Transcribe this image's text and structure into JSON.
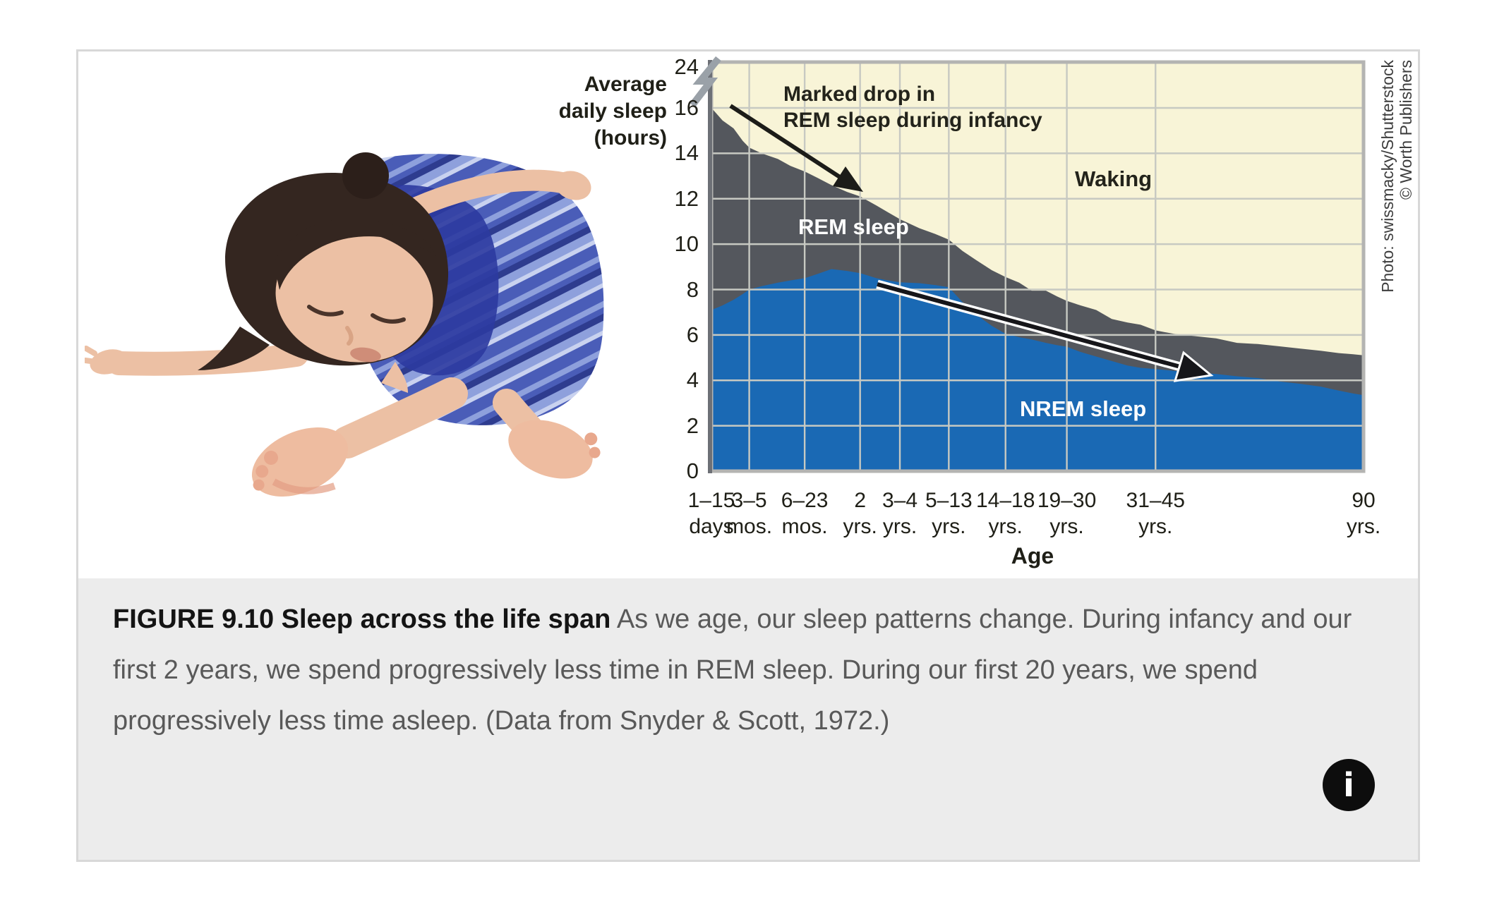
{
  "figure": {
    "credit_lines": [
      "Photo: swissmacky/Shutterstock",
      "© Worth Publishers"
    ]
  },
  "chart_data": {
    "type": "area",
    "stacked": true,
    "title": "",
    "xlabel": "Age",
    "legend_position": "in-plot-labels",
    "grid": true,
    "colors": {
      "waking": "#f8f4d7",
      "rem": "#54575d",
      "nrem": "#1a69b4",
      "grid": "#c7c9c2",
      "plot_border": "#b4b4b2",
      "axis_line": "#6d7076"
    },
    "series_labels": {
      "waking": "Waking",
      "rem": "REM sleep",
      "nrem": "NREM sleep"
    },
    "y_axis": {
      "title_lines": [
        "Average",
        "daily sleep",
        "(hours)"
      ],
      "ticks": [
        {
          "label": "0",
          "hours": 0
        },
        {
          "label": "2",
          "hours": 2
        },
        {
          "label": "4",
          "hours": 4
        },
        {
          "label": "6",
          "hours": 6
        },
        {
          "label": "8",
          "hours": 8
        },
        {
          "label": "10",
          "hours": 10
        },
        {
          "label": "12",
          "hours": 12
        },
        {
          "label": "14",
          "hours": 14
        },
        {
          "label": "16",
          "hours": 16
        },
        {
          "label": "24",
          "hours": 24
        }
      ],
      "gridline_hours": [
        2,
        4,
        6,
        8,
        10,
        12,
        14,
        16
      ],
      "axis_break_between": [
        16,
        24
      ],
      "range_shown": [
        0,
        24
      ]
    },
    "x_axis": {
      "title": "Age",
      "ticks": [
        {
          "line1": "1–15",
          "line2": "days",
          "frac": 0.0
        },
        {
          "line1": "3–5",
          "line2": "mos.",
          "frac": 0.058
        },
        {
          "line1": "6–23",
          "line2": "mos.",
          "frac": 0.143
        },
        {
          "line1": "2",
          "line2": "yrs.",
          "frac": 0.228
        },
        {
          "line1": "3–4",
          "line2": "yrs.",
          "frac": 0.289
        },
        {
          "line1": "5–13",
          "line2": "yrs.",
          "frac": 0.364
        },
        {
          "line1": "14–18",
          "line2": "yrs.",
          "frac": 0.451
        },
        {
          "line1": "19–30",
          "line2": "yrs.",
          "frac": 0.545
        },
        {
          "line1": "31–45",
          "line2": "yrs.",
          "frac": 0.681
        },
        {
          "line1": "90",
          "line2": "yrs.",
          "frac": 1.0
        }
      ]
    },
    "samples_note": "each sample = [x fraction along age axis, total sleep hours (top of REM band), NREM sleep hours]; Waking fills remainder up to 24 h",
    "samples": [
      [
        0.0,
        16.0,
        7.1
      ],
      [
        0.017,
        15.45,
        7.3
      ],
      [
        0.034,
        15.1,
        7.55
      ],
      [
        0.048,
        14.55,
        7.8
      ],
      [
        0.058,
        14.25,
        8.0
      ],
      [
        0.077,
        14.0,
        8.15
      ],
      [
        0.102,
        13.75,
        8.3
      ],
      [
        0.121,
        13.45,
        8.4
      ],
      [
        0.143,
        13.2,
        8.5
      ],
      [
        0.164,
        12.9,
        8.7
      ],
      [
        0.184,
        12.6,
        8.9
      ],
      [
        0.208,
        12.3,
        8.82
      ],
      [
        0.228,
        12.1,
        8.72
      ],
      [
        0.253,
        11.7,
        8.5
      ],
      [
        0.271,
        11.4,
        8.4
      ],
      [
        0.289,
        11.1,
        8.32
      ],
      [
        0.319,
        10.7,
        8.28
      ],
      [
        0.343,
        10.45,
        8.2
      ],
      [
        0.364,
        10.2,
        8.1
      ],
      [
        0.385,
        9.7,
        7.45
      ],
      [
        0.406,
        9.3,
        6.9
      ],
      [
        0.43,
        8.85,
        6.4
      ],
      [
        0.451,
        8.55,
        6.05
      ],
      [
        0.472,
        8.3,
        5.9
      ],
      [
        0.491,
        7.95,
        5.8
      ],
      [
        0.513,
        7.95,
        5.65
      ],
      [
        0.53,
        7.7,
        5.55
      ],
      [
        0.545,
        7.5,
        5.48
      ],
      [
        0.566,
        7.3,
        5.25
      ],
      [
        0.59,
        7.1,
        5.05
      ],
      [
        0.614,
        6.7,
        4.85
      ],
      [
        0.638,
        6.55,
        4.65
      ],
      [
        0.658,
        6.45,
        4.55
      ],
      [
        0.681,
        6.2,
        4.5
      ],
      [
        0.709,
        6.05,
        4.42
      ],
      [
        0.741,
        5.95,
        4.35
      ],
      [
        0.774,
        5.85,
        4.28
      ],
      [
        0.806,
        5.65,
        4.18
      ],
      [
        0.838,
        5.6,
        4.1
      ],
      [
        0.871,
        5.5,
        3.95
      ],
      [
        0.903,
        5.4,
        3.85
      ],
      [
        0.935,
        5.3,
        3.72
      ],
      [
        0.962,
        5.2,
        3.55
      ],
      [
        0.984,
        5.15,
        3.42
      ],
      [
        1.0,
        5.1,
        3.35
      ]
    ],
    "annotations": {
      "rem_drop": {
        "lines": [
          "Marked drop in",
          "REM sleep during infancy"
        ]
      }
    }
  },
  "caption": {
    "lead": "FIGURE 9.10 Sleep across the life span",
    "body": " As we age, our sleep patterns change. During infancy and our first 2 years, we spend progressively less time in REM sleep. During our first 20 years, we spend progressively less time asleep. (Data from Snyder & Scott, 1972.)",
    "info_icon_label": "i"
  }
}
